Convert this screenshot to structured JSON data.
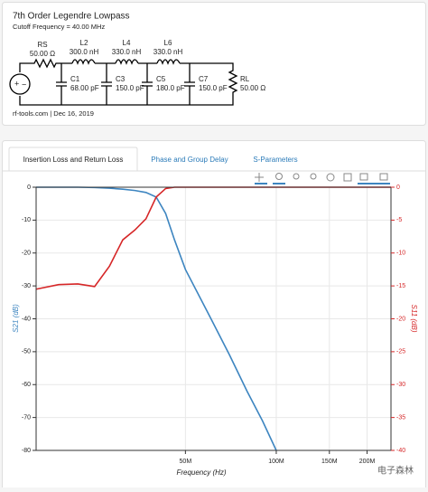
{
  "header": {
    "title": "7th Order Legendre Lowpass",
    "subtitle": "Cutoff Frequency = 40.00 MHz",
    "footer": "rf-tools.com | Dec 16, 2019"
  },
  "circuit": {
    "components": [
      {
        "name": "RS",
        "value": "50.00 Ω"
      },
      {
        "name": "L2",
        "value": "300.0 nH"
      },
      {
        "name": "L4",
        "value": "330.0 nH"
      },
      {
        "name": "L6",
        "value": "330.0 nH"
      },
      {
        "name": "C1",
        "value": "68.00 pF"
      },
      {
        "name": "C3",
        "value": "150.0 pF"
      },
      {
        "name": "C5",
        "value": "180.0 pF"
      },
      {
        "name": "C7",
        "value": "150.0 pF"
      },
      {
        "name": "RL",
        "value": "50.00 Ω"
      }
    ]
  },
  "tabs": [
    "Insertion Loss and Return Loss",
    "Phase and Group Delay",
    "S-Parameters"
  ],
  "watermark": "电子森林",
  "chart_data": {
    "type": "line",
    "xlabel": "Frequency (Hz)",
    "ylabel": "S21 (dB)",
    "y2label": "S11 (dB)",
    "x_scale": "log",
    "grid": true,
    "x": [
      16,
      19,
      22,
      25,
      28,
      31,
      34,
      37,
      40,
      43,
      46,
      50,
      60,
      70,
      80,
      90,
      100,
      150,
      200,
      240
    ],
    "series": [
      {
        "name": "S21",
        "color": "#3d85c0",
        "values": [
          0,
          0,
          0,
          -0.1,
          -0.3,
          -0.6,
          -1,
          -1.6,
          -3,
          -8,
          -16,
          -25,
          -39,
          -51,
          -62,
          -71,
          -80,
          null,
          null,
          null
        ]
      },
      {
        "name": "S11",
        "color": "#d62728",
        "axis": "y2",
        "values": [
          -15.5,
          -14.8,
          -14.7,
          -15.1,
          -12,
          -8,
          -6.5,
          -4.8,
          -1.5,
          -0.2,
          0,
          0,
          0,
          0,
          0,
          0,
          0,
          0,
          0,
          0
        ]
      }
    ],
    "xlim": [
      16,
      240
    ],
    "xticks": [
      {
        "value": 50,
        "label": "50M"
      },
      {
        "value": 100,
        "label": "100M"
      },
      {
        "value": 150,
        "label": "150M"
      },
      {
        "value": 200,
        "label": "200M"
      }
    ],
    "ylim": [
      -80,
      0
    ],
    "yticks": [
      0,
      -10,
      -20,
      -30,
      -40,
      -50,
      -60,
      -70,
      -80
    ],
    "y2lim": [
      -40,
      0
    ],
    "y2ticks": [
      0,
      -5,
      -10,
      -15,
      -20,
      -25,
      -30,
      -35,
      -40
    ]
  }
}
